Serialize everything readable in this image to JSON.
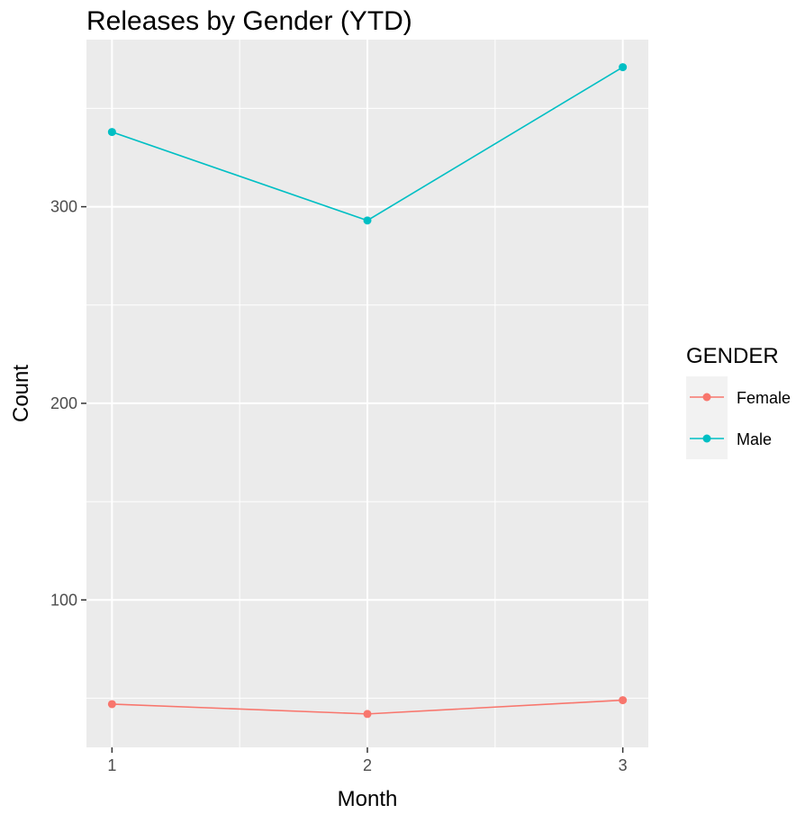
{
  "chart_data": {
    "type": "line",
    "title": "Releases by Gender (YTD)",
    "xlabel": "Month",
    "ylabel": "Count",
    "x": [
      1,
      2,
      3
    ],
    "xlim": [
      0.9,
      3.1
    ],
    "ylim": [
      25,
      385
    ],
    "x_ticks": [
      1,
      2,
      3
    ],
    "y_ticks": [
      100,
      200,
      300
    ],
    "grid": true,
    "legend": {
      "title": "GENDER",
      "position": "right"
    },
    "series": [
      {
        "name": "Female",
        "color": "#f8766d",
        "values": [
          47,
          42,
          49
        ]
      },
      {
        "name": "Male",
        "color": "#00bfc4",
        "values": [
          338,
          293,
          371
        ]
      }
    ]
  }
}
